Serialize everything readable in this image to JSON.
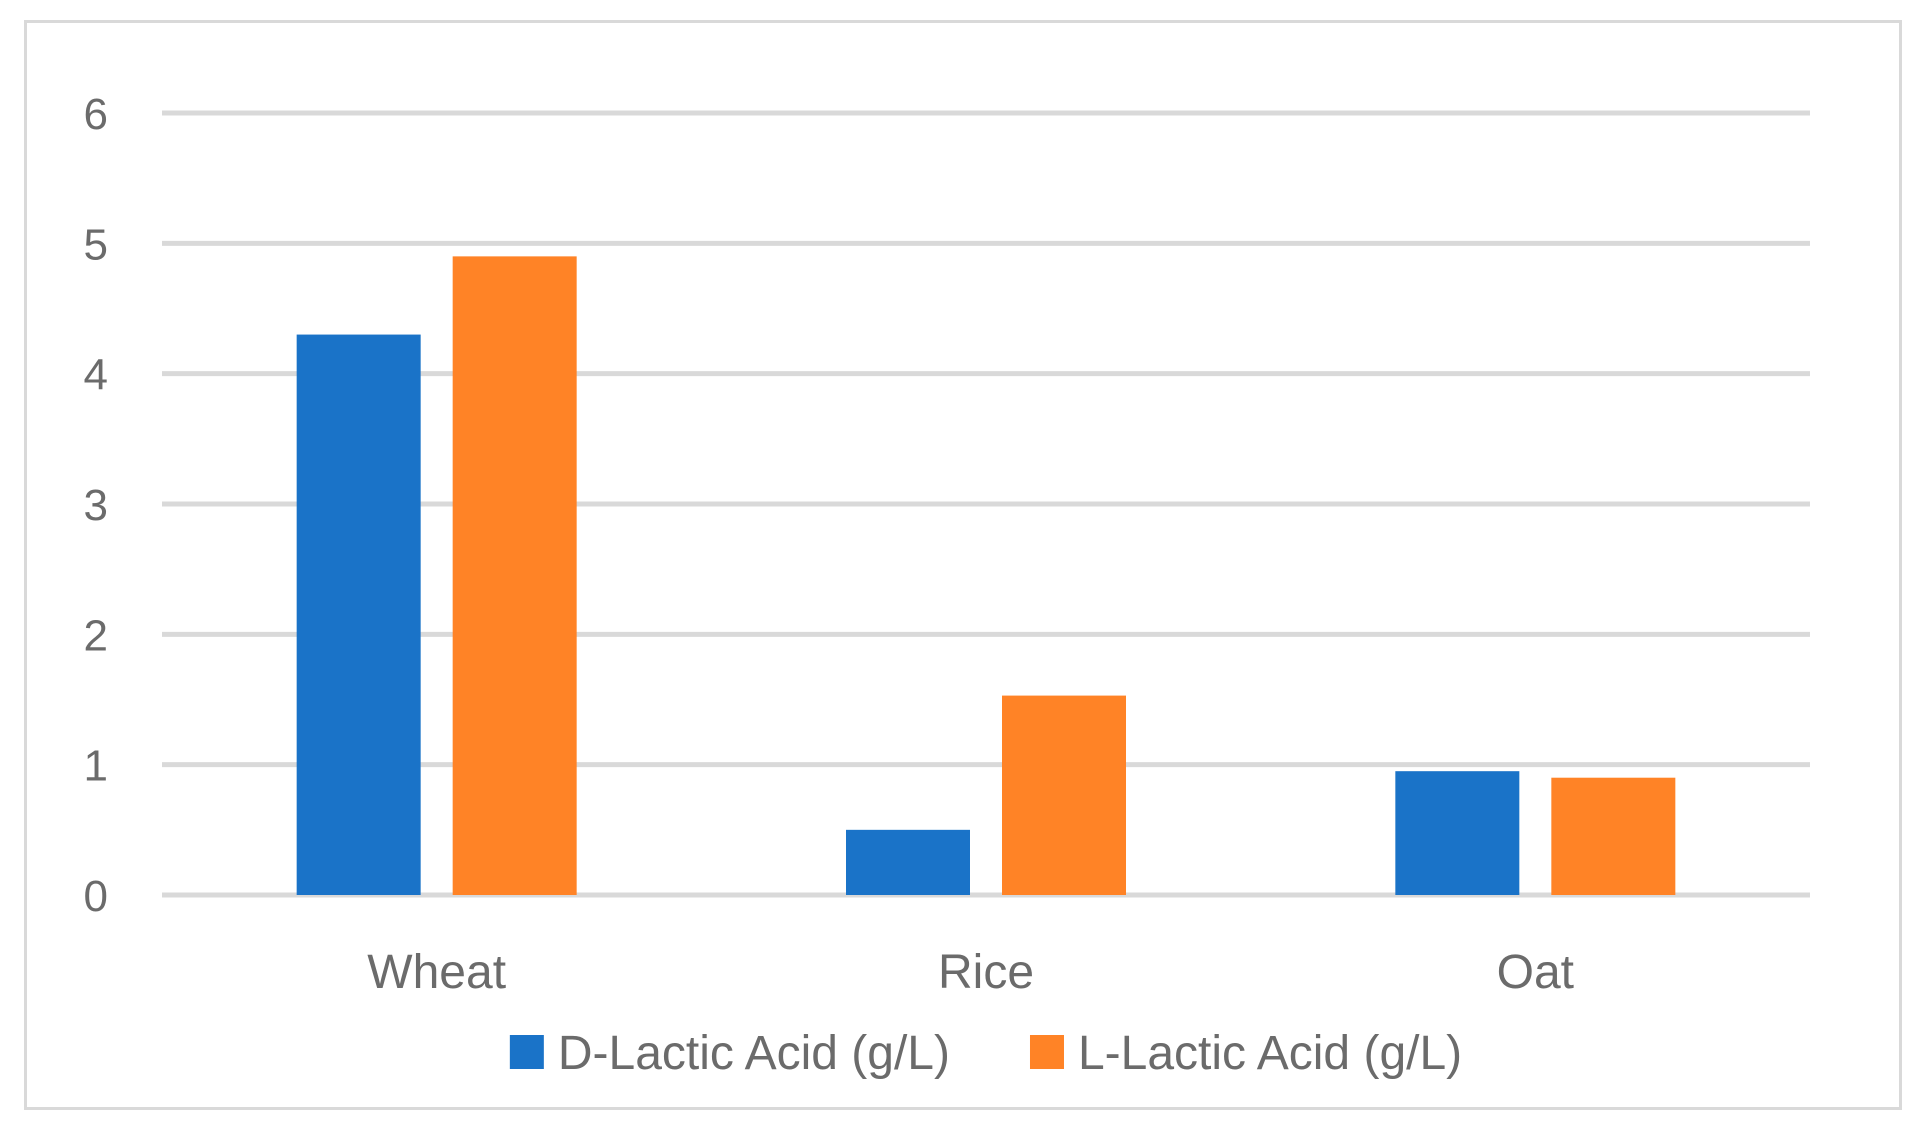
{
  "chart_data": {
    "type": "bar",
    "title": "",
    "xlabel": "",
    "ylabel": "",
    "categories": [
      "Wheat",
      "Rice",
      "Oat"
    ],
    "series": [
      {
        "name": "D-Lactic Acid (g/L)",
        "color": "#1a73c8",
        "values": [
          4.3,
          0.5,
          0.95
        ]
      },
      {
        "name": "L-Lactic Acid (g/L)",
        "color": "#ff8326",
        "values": [
          4.9,
          1.53,
          0.9
        ]
      }
    ],
    "ylim": [
      0,
      6
    ],
    "yticks": [
      "0",
      "1",
      "2",
      "3",
      "4",
      "5",
      "6"
    ],
    "grid": true,
    "legend_position": "bottom",
    "colors": {
      "grid": "#d9d9d9",
      "text": "#6b6b6b",
      "border": "#d9d9d9"
    }
  }
}
